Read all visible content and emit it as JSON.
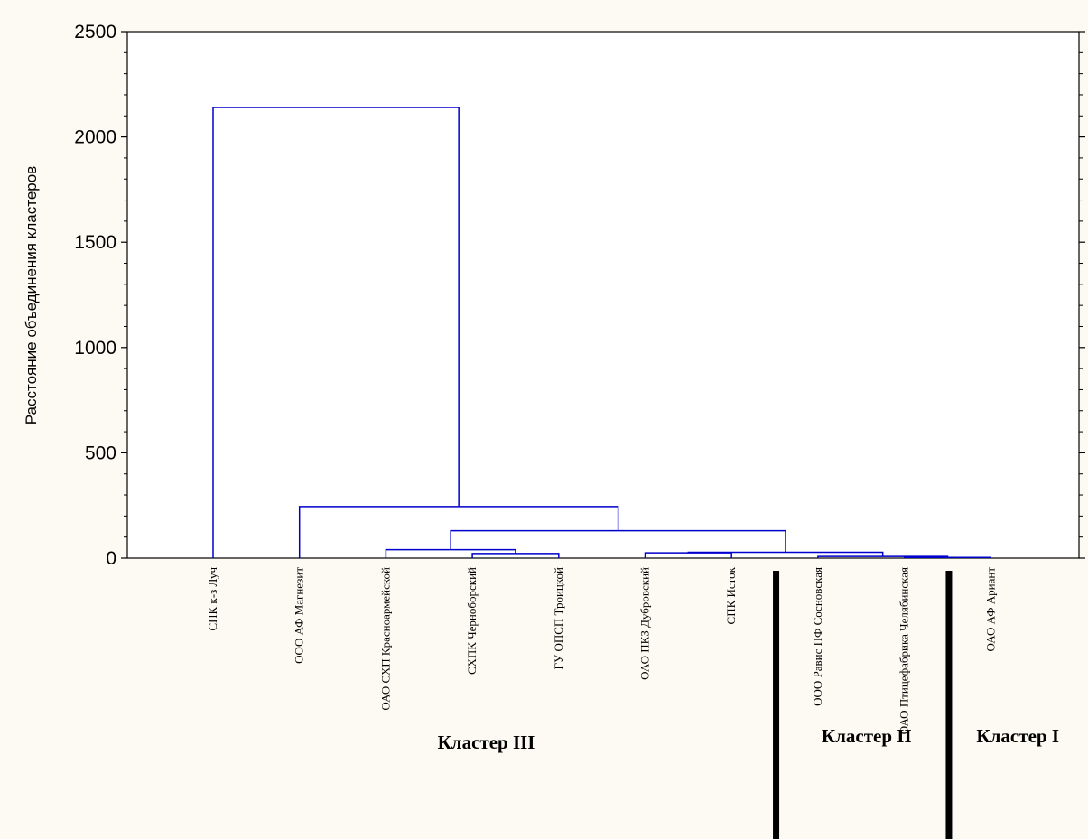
{
  "chart_data": {
    "type": "dendrogram",
    "ylabel": "Расстояние объединения кластеров",
    "ylim": [
      0,
      2500
    ],
    "y_ticks": [
      0,
      500,
      1000,
      1500,
      2000,
      2500
    ],
    "grid": true,
    "leaves": [
      "СПК к-з Луч",
      "ООО АФ Магнезит",
      "ОАО СХП Красноармейской",
      "СХПК Черноборский",
      "ГУ ОПСП Троицкой",
      "ОАО ПКЗ Дубровский",
      "СПК Исток",
      "ООО Равис ПФ Сосновская",
      "ОАО Птицефабрика Челябинская",
      "ОАО АФ Ариант"
    ],
    "merges": [
      {
        "id": "m1",
        "left": "leaf:8",
        "right": "leaf:9",
        "height": 3
      },
      {
        "id": "m2",
        "left": "leaf:7",
        "right": "m1",
        "height": 8
      },
      {
        "id": "m3",
        "left": "leaf:3",
        "right": "leaf:4",
        "height": 22
      },
      {
        "id": "m4",
        "left": "leaf:5",
        "right": "leaf:6",
        "height": 25
      },
      {
        "id": "m5",
        "left": "m4",
        "right": "m2",
        "height": 28
      },
      {
        "id": "m6",
        "left": "leaf:2",
        "right": "m3",
        "height": 40
      },
      {
        "id": "m7",
        "left": "m6",
        "right": "m5",
        "height": 130
      },
      {
        "id": "m8",
        "left": "leaf:1",
        "right": "m7",
        "height": 245
      },
      {
        "id": "m9",
        "left": "leaf:0",
        "right": "m8",
        "height": 2140
      }
    ],
    "clusters": [
      {
        "name": "Кластер III",
        "leaf_range": [
          0,
          6
        ]
      },
      {
        "name": "Кластер II",
        "leaf_range": [
          7,
          8
        ]
      },
      {
        "name": "Кластер I",
        "leaf_range": [
          9,
          9
        ]
      }
    ],
    "line_color": "#0000cc",
    "grid_color": "#b0b0b0"
  }
}
